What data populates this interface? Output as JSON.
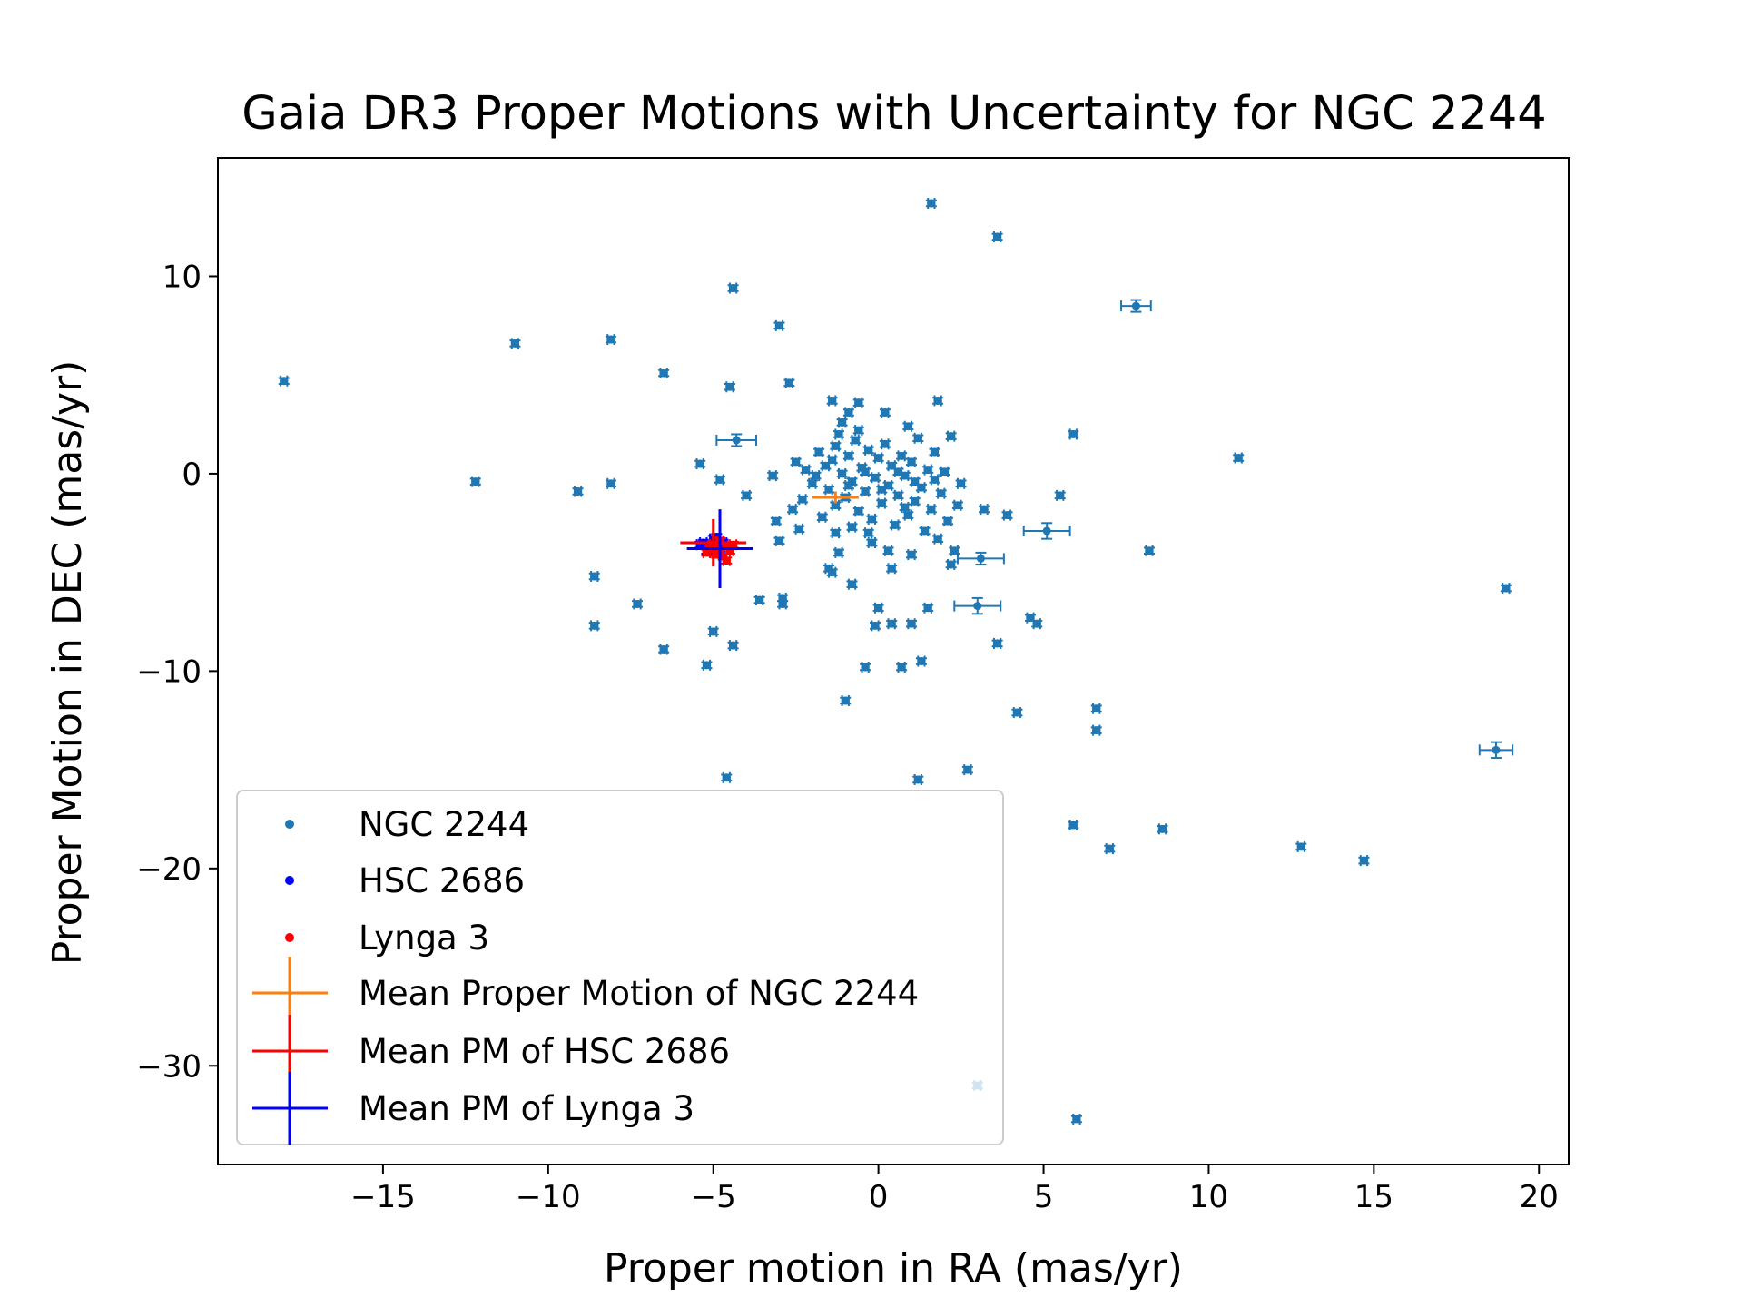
{
  "chart_data": {
    "type": "scatter",
    "title": "Gaia DR3 Proper Motions with Uncertainty for NGC 2244",
    "xlabel": "Proper motion in RA (mas/yr)",
    "ylabel": "Proper Motion in DEC (mas/yr)",
    "xlim": [
      -20.0,
      20.9
    ],
    "ylim": [
      -35.0,
      16.0
    ],
    "xticks": [
      -15,
      -10,
      -5,
      0,
      5,
      10,
      15,
      20
    ],
    "xtick_labels": [
      "−15",
      "−10",
      "−5",
      "0",
      "5",
      "10",
      "15",
      "20"
    ],
    "yticks": [
      -30,
      -20,
      -10,
      0,
      10
    ],
    "ytick_labels": [
      "−30",
      "−20",
      "−10",
      "0",
      "10"
    ],
    "grid": false,
    "legend_position": "lower-left",
    "colors": {
      "ngc": "#1f77b4",
      "hsc": "#0000ff",
      "lynga": "#ff0000",
      "mean_ngc": "#ff7f0e",
      "mean_hsc": "#ff0000",
      "mean_lynga": "#0000ff"
    },
    "series": [
      {
        "name": "NGC 2244",
        "kind": "points",
        "color": "#1f77b4",
        "points": [
          [
            -18.0,
            4.7,
            0.1,
            0.15
          ],
          [
            -12.2,
            -0.4,
            0.1,
            0.15
          ],
          [
            -11.0,
            6.6,
            0.1,
            0.15
          ],
          [
            -9.1,
            -0.9,
            0.1,
            0.15
          ],
          [
            -8.6,
            -5.2,
            0.1,
            0.15
          ],
          [
            -8.6,
            -7.7,
            0.1,
            0.15
          ],
          [
            -8.1,
            6.8,
            0.1,
            0.15
          ],
          [
            -8.1,
            -0.5,
            0.1,
            0.15
          ],
          [
            -7.3,
            -6.6,
            0.1,
            0.15
          ],
          [
            -6.5,
            5.1,
            0.1,
            0.15
          ],
          [
            -6.5,
            -8.9,
            0.1,
            0.15
          ],
          [
            -5.4,
            0.5,
            0.1,
            0.15
          ],
          [
            -5.2,
            -9.7,
            0.1,
            0.15
          ],
          [
            -5.0,
            -8.0,
            0.1,
            0.15
          ],
          [
            -4.8,
            -0.3,
            0.1,
            0.15
          ],
          [
            -4.6,
            -15.4,
            0.1,
            0.15
          ],
          [
            -4.5,
            4.4,
            0.1,
            0.15
          ],
          [
            -4.4,
            9.4,
            0.1,
            0.15
          ],
          [
            -4.4,
            -8.7,
            0.1,
            0.15
          ],
          [
            -4.3,
            1.7,
            0.6,
            0.3
          ],
          [
            -4.0,
            -1.1,
            0.1,
            0.15
          ],
          [
            -3.6,
            -6.4,
            0.1,
            0.15
          ],
          [
            -3.2,
            -0.1,
            0.1,
            0.15
          ],
          [
            -3.1,
            -2.4,
            0.1,
            0.15
          ],
          [
            -3.0,
            7.5,
            0.1,
            0.15
          ],
          [
            -3.0,
            -3.4,
            0.1,
            0.15
          ],
          [
            -2.9,
            -6.3,
            0.1,
            0.15
          ],
          [
            -2.9,
            -6.6,
            0.1,
            0.15
          ],
          [
            -2.7,
            4.6,
            0.1,
            0.15
          ],
          [
            -2.4,
            -2.8,
            0.1,
            0.15
          ],
          [
            -1.5,
            -4.8,
            0.1,
            0.15
          ],
          [
            -1.4,
            -5.0,
            0.1,
            0.15
          ],
          [
            -1.4,
            3.7,
            0.1,
            0.15
          ],
          [
            -1.3,
            -1.6,
            0.1,
            0.15
          ],
          [
            -1.3,
            -3.0,
            0.1,
            0.15
          ],
          [
            -1.2,
            2.0,
            0.1,
            0.15
          ],
          [
            -1.2,
            -4.0,
            0.1,
            0.15
          ],
          [
            -1.0,
            -11.5,
            0.1,
            0.15
          ],
          [
            -0.9,
            3.1,
            0.1,
            0.15
          ],
          [
            -0.8,
            -5.6,
            0.1,
            0.15
          ],
          [
            -0.6,
            3.6,
            0.1,
            0.15
          ],
          [
            -0.4,
            -9.8,
            0.1,
            0.15
          ],
          [
            -0.3,
            -3.0,
            0.1,
            0.15
          ],
          [
            -0.1,
            -7.7,
            0.1,
            0.15
          ],
          [
            0.0,
            -6.8,
            0.1,
            0.15
          ],
          [
            0.2,
            3.1,
            0.1,
            0.15
          ],
          [
            0.4,
            -4.8,
            0.1,
            0.15
          ],
          [
            0.4,
            -7.6,
            0.1,
            0.15
          ],
          [
            0.7,
            -9.8,
            0.1,
            0.15
          ],
          [
            0.8,
            -1.7,
            0.1,
            0.15
          ],
          [
            1.0,
            -7.6,
            0.1,
            0.15
          ],
          [
            1.2,
            -15.5,
            0.1,
            0.15
          ],
          [
            1.3,
            -9.5,
            0.1,
            0.15
          ],
          [
            1.5,
            -6.8,
            0.1,
            0.15
          ],
          [
            1.6,
            13.7,
            0.1,
            0.15
          ],
          [
            1.8,
            3.7,
            0.1,
            0.15
          ],
          [
            2.2,
            1.9,
            0.1,
            0.15
          ],
          [
            2.3,
            -3.9,
            0.1,
            0.15
          ],
          [
            2.5,
            -0.5,
            0.1,
            0.15
          ],
          [
            2.7,
            -15.0,
            0.1,
            0.15
          ],
          [
            3.0,
            -31.0,
            0.1,
            0.15
          ],
          [
            3.1,
            -4.3,
            0.7,
            0.3
          ],
          [
            3.0,
            -6.7,
            0.7,
            0.4
          ],
          [
            3.2,
            -1.8,
            0.1,
            0.15
          ],
          [
            3.6,
            12.0,
            0.1,
            0.15
          ],
          [
            3.6,
            -8.6,
            0.1,
            0.15
          ],
          [
            3.9,
            -2.1,
            0.1,
            0.15
          ],
          [
            4.2,
            -12.1,
            0.1,
            0.15
          ],
          [
            4.6,
            -7.3,
            0.1,
            0.15
          ],
          [
            4.8,
            -7.6,
            0.1,
            0.15
          ],
          [
            5.1,
            -2.9,
            0.7,
            0.4
          ],
          [
            5.5,
            -1.1,
            0.1,
            0.15
          ],
          [
            5.9,
            2.0,
            0.1,
            0.15
          ],
          [
            5.9,
            -17.8,
            0.1,
            0.15
          ],
          [
            6.0,
            -32.7,
            0.1,
            0.15
          ],
          [
            6.6,
            -11.9,
            0.1,
            0.15
          ],
          [
            6.6,
            -13.0,
            0.1,
            0.15
          ],
          [
            7.0,
            -19.0,
            0.1,
            0.15
          ],
          [
            7.8,
            8.5,
            0.45,
            0.3
          ],
          [
            8.2,
            -3.9,
            0.1,
            0.15
          ],
          [
            8.6,
            -18.0,
            0.1,
            0.15
          ],
          [
            10.9,
            0.8,
            0.1,
            0.15
          ],
          [
            12.8,
            -18.9,
            0.1,
            0.15
          ],
          [
            14.7,
            -19.6,
            0.1,
            0.15
          ],
          [
            18.7,
            -14.0,
            0.5,
            0.4
          ],
          [
            19.0,
            -5.8,
            0.1,
            0.15
          ],
          [
            -2.5,
            0.6,
            0.1,
            0.15
          ],
          [
            -2.2,
            0.2,
            0.1,
            0.15
          ],
          [
            -2.0,
            -0.5,
            0.1,
            0.15
          ],
          [
            -1.8,
            1.1,
            0.1,
            0.15
          ],
          [
            -1.6,
            0.4,
            0.1,
            0.15
          ],
          [
            -1.5,
            -0.8,
            0.1,
            0.15
          ],
          [
            -1.3,
            1.4,
            0.1,
            0.15
          ],
          [
            -1.1,
            0.0,
            0.1,
            0.15
          ],
          [
            -1.0,
            -1.2,
            0.1,
            0.15
          ],
          [
            -0.9,
            0.9,
            0.1,
            0.15
          ],
          [
            -0.8,
            -0.4,
            0.1,
            0.15
          ],
          [
            -0.7,
            1.7,
            0.1,
            0.15
          ],
          [
            -0.6,
            -1.9,
            0.1,
            0.15
          ],
          [
            -0.5,
            0.3,
            0.1,
            0.15
          ],
          [
            -0.4,
            -0.9,
            0.1,
            0.15
          ],
          [
            -0.3,
            1.2,
            0.1,
            0.15
          ],
          [
            -0.2,
            -2.3,
            0.1,
            0.15
          ],
          [
            -0.1,
            -0.2,
            0.1,
            0.15
          ],
          [
            0.0,
            0.8,
            0.1,
            0.15
          ],
          [
            0.1,
            -1.5,
            0.1,
            0.15
          ],
          [
            0.2,
            1.5,
            0.1,
            0.15
          ],
          [
            0.3,
            -0.6,
            0.1,
            0.15
          ],
          [
            0.4,
            0.4,
            0.1,
            0.15
          ],
          [
            0.5,
            -2.6,
            0.1,
            0.15
          ],
          [
            0.6,
            -1.1,
            0.1,
            0.15
          ],
          [
            0.7,
            0.9,
            0.1,
            0.15
          ],
          [
            0.8,
            -0.1,
            0.1,
            0.15
          ],
          [
            0.9,
            -2.1,
            0.1,
            0.15
          ],
          [
            1.0,
            0.6,
            0.1,
            0.15
          ],
          [
            1.1,
            -1.4,
            0.1,
            0.15
          ],
          [
            1.2,
            1.8,
            0.1,
            0.15
          ],
          [
            1.3,
            -0.7,
            0.1,
            0.15
          ],
          [
            1.4,
            -2.9,
            0.1,
            0.15
          ],
          [
            1.5,
            0.2,
            0.1,
            0.15
          ],
          [
            1.6,
            -1.8,
            0.1,
            0.15
          ],
          [
            1.7,
            -0.3,
            0.1,
            0.15
          ],
          [
            1.8,
            -3.3,
            0.1,
            0.15
          ],
          [
            1.9,
            -1.0,
            0.1,
            0.15
          ],
          [
            2.0,
            0.1,
            0.1,
            0.15
          ],
          [
            2.1,
            -2.4,
            0.1,
            0.15
          ],
          [
            -1.9,
            -0.1,
            0.1,
            0.15
          ],
          [
            -1.4,
            0.7,
            0.1,
            0.15
          ],
          [
            -0.9,
            -0.6,
            0.1,
            0.15
          ],
          [
            -0.4,
            0.1,
            0.1,
            0.15
          ],
          [
            0.1,
            -0.8,
            0.1,
            0.15
          ],
          [
            0.6,
            0.1,
            0.1,
            0.15
          ],
          [
            1.1,
            -0.4,
            0.1,
            0.15
          ],
          [
            -2.3,
            -1.3,
            0.1,
            0.15
          ],
          [
            -1.7,
            -2.2,
            0.1,
            0.15
          ],
          [
            -0.2,
            -3.5,
            0.1,
            0.15
          ],
          [
            0.3,
            -3.9,
            0.1,
            0.15
          ],
          [
            1.0,
            -4.1,
            0.1,
            0.15
          ],
          [
            -2.6,
            -1.8,
            0.1,
            0.15
          ],
          [
            2.4,
            -1.6,
            0.1,
            0.15
          ],
          [
            1.7,
            1.1,
            0.1,
            0.15
          ],
          [
            -0.6,
            2.2,
            0.1,
            0.15
          ],
          [
            0.9,
            2.4,
            0.1,
            0.15
          ],
          [
            -1.1,
            2.6,
            0.1,
            0.15
          ],
          [
            2.2,
            -4.6,
            0.1,
            0.15
          ],
          [
            -0.8,
            -2.7,
            0.1,
            0.15
          ]
        ]
      },
      {
        "name": "HSC 2686",
        "kind": "points",
        "color": "#0000ff",
        "points": [
          [
            -5.3,
            -3.5,
            0.1,
            0.15
          ],
          [
            -5.1,
            -3.7,
            0.1,
            0.15
          ],
          [
            -5.0,
            -3.3,
            0.1,
            0.15
          ],
          [
            -4.9,
            -3.6,
            0.1,
            0.15
          ],
          [
            -5.2,
            -3.9,
            0.1,
            0.15
          ],
          [
            -4.8,
            -3.8,
            0.1,
            0.15
          ],
          [
            -5.0,
            -4.0,
            0.1,
            0.15
          ],
          [
            -5.4,
            -3.6,
            0.1,
            0.15
          ],
          [
            -4.7,
            -3.5,
            0.1,
            0.15
          ],
          [
            -4.9,
            -3.2,
            0.1,
            0.15
          ]
        ]
      },
      {
        "name": "Lynga 3",
        "kind": "points",
        "color": "#ff0000",
        "points": [
          [
            -5.0,
            -3.6,
            0.1,
            0.15
          ],
          [
            -4.8,
            -3.9,
            0.1,
            0.15
          ],
          [
            -4.6,
            -3.7,
            0.1,
            0.15
          ],
          [
            -4.9,
            -4.1,
            0.1,
            0.15
          ],
          [
            -4.5,
            -3.9,
            0.1,
            0.15
          ],
          [
            -5.1,
            -3.8,
            0.1,
            0.15
          ],
          [
            -4.7,
            -4.2,
            0.1,
            0.15
          ],
          [
            -4.4,
            -3.6,
            0.1,
            0.15
          ],
          [
            -4.8,
            -3.4,
            0.1,
            0.15
          ],
          [
            -5.2,
            -4.0,
            0.1,
            0.15
          ],
          [
            -4.6,
            -4.4,
            0.1,
            0.15
          ],
          [
            -4.9,
            -3.7,
            0.1,
            0.15
          ]
        ]
      },
      {
        "name": "Mean Proper Motion of NGC 2244",
        "kind": "mean",
        "color": "#ff7f0e",
        "x": -1.3,
        "y": -1.2,
        "xerr": 0.7,
        "yerr": 0.3
      },
      {
        "name": "Mean PM of HSC 2686",
        "kind": "mean",
        "color": "#ff0000",
        "x": -5.0,
        "y": -3.5,
        "xerr": 1.0,
        "yerr": 1.2
      },
      {
        "name": "Mean PM of Lynga 3",
        "kind": "mean",
        "color": "#0000ff",
        "x": -4.8,
        "y": -3.8,
        "xerr": 1.0,
        "yerr": 2.0
      }
    ]
  }
}
